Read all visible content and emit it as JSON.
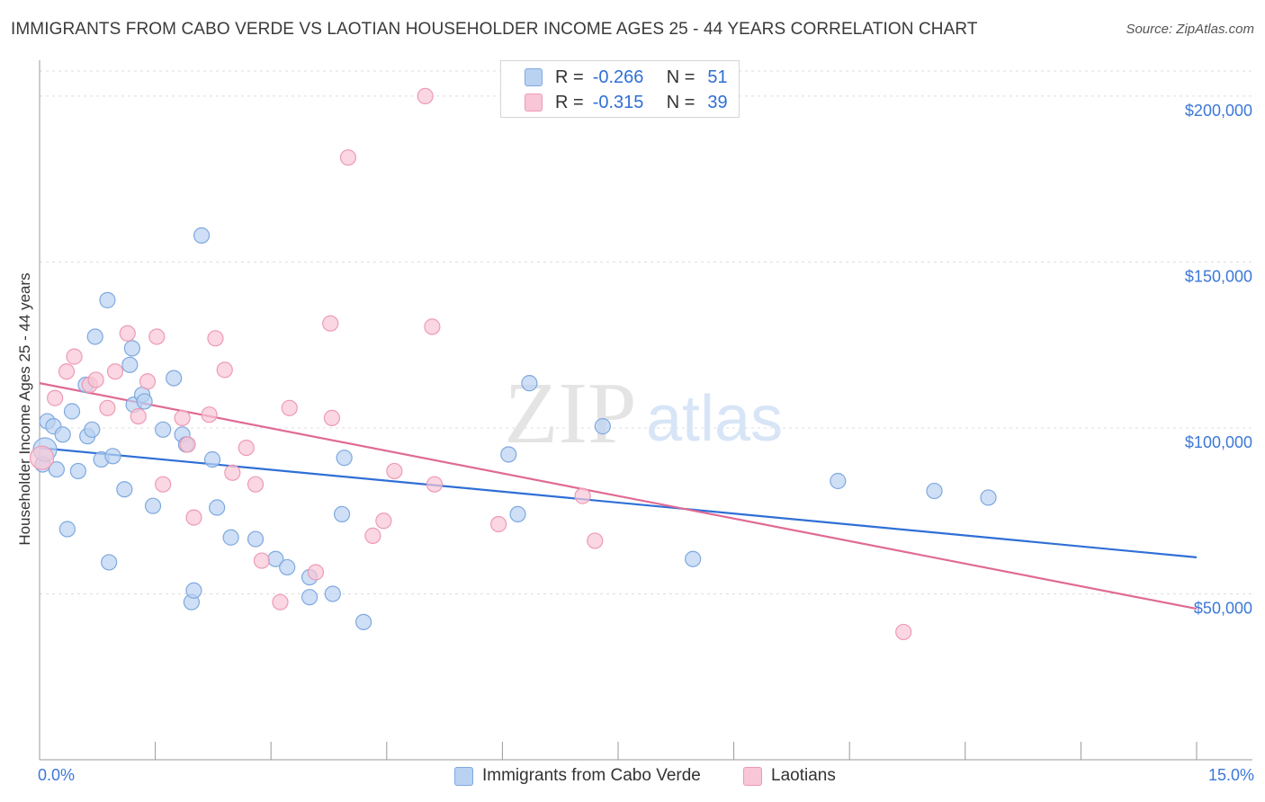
{
  "title": "IMMIGRANTS FROM CABO VERDE VS LAOTIAN HOUSEHOLDER INCOME AGES 25 - 44 YEARS CORRELATION CHART",
  "source": "Source: ZipAtlas.com",
  "watermark": {
    "zip": "ZIP",
    "atlas": "atlas"
  },
  "colors": {
    "blue_fill": "#b9d2f2",
    "blue_stroke": "#7fa9df",
    "blue_line": "#2f6fd6",
    "pink_fill": "#f8c6d6",
    "pink_stroke": "#ee9ab5",
    "pink_line": "#e06a95",
    "axis_text": "#3c78d8",
    "grid": "#dddddd"
  },
  "legend": {
    "r_label": "R =",
    "n_label": "N =",
    "series": [
      {
        "r": "-0.266",
        "n": "51"
      },
      {
        "r": "-0.315",
        "n": "39"
      }
    ]
  },
  "chart_data": {
    "type": "scatter",
    "title": "IMMIGRANTS FROM CABO VERDE VS LAOTIAN HOUSEHOLDER INCOME AGES 25 - 44 YEARS CORRELATION CHART",
    "xlabel": "",
    "ylabel": "Householder Income Ages 25 - 44 years",
    "xlim": [
      0,
      15
    ],
    "ylim": [
      0,
      210000
    ],
    "x_tick_labels": [
      "0.0%",
      "15.0%"
    ],
    "y_ticks": [
      50000,
      100000,
      150000,
      200000
    ],
    "y_tick_labels": [
      "$50,000",
      "$100,000",
      "$150,000",
      "$200,000"
    ],
    "legend_position": "top-center",
    "series": [
      {
        "name": "Immigrants from Cabo Verde",
        "trend": {
          "x": [
            0,
            15
          ],
          "y": [
            94000,
            61000
          ]
        },
        "points": [
          [
            0.04,
            89000
          ],
          [
            0.1,
            102000
          ],
          [
            0.18,
            100500
          ],
          [
            0.22,
            87500
          ],
          [
            0.3,
            98000
          ],
          [
            0.36,
            69500
          ],
          [
            0.42,
            105000
          ],
          [
            0.5,
            87000
          ],
          [
            0.6,
            113000
          ],
          [
            0.62,
            97500
          ],
          [
            0.68,
            99500
          ],
          [
            0.72,
            127500
          ],
          [
            0.8,
            90500
          ],
          [
            0.88,
            138500
          ],
          [
            0.9,
            59500
          ],
          [
            0.95,
            91500
          ],
          [
            1.1,
            81500
          ],
          [
            1.17,
            119000
          ],
          [
            1.2,
            124000
          ],
          [
            1.22,
            107000
          ],
          [
            1.33,
            110000
          ],
          [
            1.36,
            108000
          ],
          [
            1.47,
            76500
          ],
          [
            1.6,
            99500
          ],
          [
            1.74,
            115000
          ],
          [
            1.85,
            98000
          ],
          [
            1.9,
            95000
          ],
          [
            1.97,
            47500
          ],
          [
            2.0,
            51000
          ],
          [
            2.1,
            158000
          ],
          [
            2.24,
            90500
          ],
          [
            2.3,
            76000
          ],
          [
            2.48,
            67000
          ],
          [
            2.8,
            66500
          ],
          [
            3.06,
            60500
          ],
          [
            3.21,
            58000
          ],
          [
            3.5,
            55000
          ],
          [
            3.5,
            49000
          ],
          [
            3.8,
            50000
          ],
          [
            3.92,
            74000
          ],
          [
            3.95,
            91000
          ],
          [
            4.2,
            41500
          ],
          [
            6.08,
            92000
          ],
          [
            6.2,
            74000
          ],
          [
            6.35,
            113500
          ],
          [
            7.3,
            100500
          ],
          [
            8.47,
            60500
          ],
          [
            10.35,
            84000
          ],
          [
            11.6,
            81000
          ],
          [
            12.3,
            79000
          ],
          [
            0.07,
            93500
          ]
        ]
      },
      {
        "name": "Laotians",
        "trend": {
          "x": [
            0,
            15
          ],
          "y": [
            113500,
            45500
          ]
        },
        "points": [
          [
            0.03,
            91000
          ],
          [
            0.2,
            109000
          ],
          [
            0.35,
            117000
          ],
          [
            0.45,
            121500
          ],
          [
            0.65,
            113000
          ],
          [
            0.73,
            114500
          ],
          [
            0.88,
            106000
          ],
          [
            0.98,
            117000
          ],
          [
            1.14,
            128500
          ],
          [
            1.28,
            103500
          ],
          [
            1.4,
            114000
          ],
          [
            1.52,
            127500
          ],
          [
            1.6,
            83000
          ],
          [
            1.85,
            103000
          ],
          [
            1.92,
            95000
          ],
          [
            2.0,
            73000
          ],
          [
            2.2,
            104000
          ],
          [
            2.28,
            127000
          ],
          [
            2.4,
            117500
          ],
          [
            2.5,
            86500
          ],
          [
            2.68,
            94000
          ],
          [
            2.8,
            83000
          ],
          [
            2.88,
            60000
          ],
          [
            3.12,
            47500
          ],
          [
            3.24,
            106000
          ],
          [
            3.58,
            56500
          ],
          [
            3.77,
            131500
          ],
          [
            3.79,
            103000
          ],
          [
            4.0,
            181500
          ],
          [
            4.32,
            67500
          ],
          [
            4.46,
            72000
          ],
          [
            4.6,
            87000
          ],
          [
            5.0,
            200000
          ],
          [
            5.09,
            130500
          ],
          [
            5.12,
            83000
          ],
          [
            5.95,
            71000
          ],
          [
            7.04,
            79500
          ],
          [
            7.2,
            66000
          ],
          [
            11.2,
            38500
          ]
        ]
      }
    ]
  },
  "bottom_legend": [
    "Immigrants from Cabo Verde",
    "Laotians"
  ]
}
